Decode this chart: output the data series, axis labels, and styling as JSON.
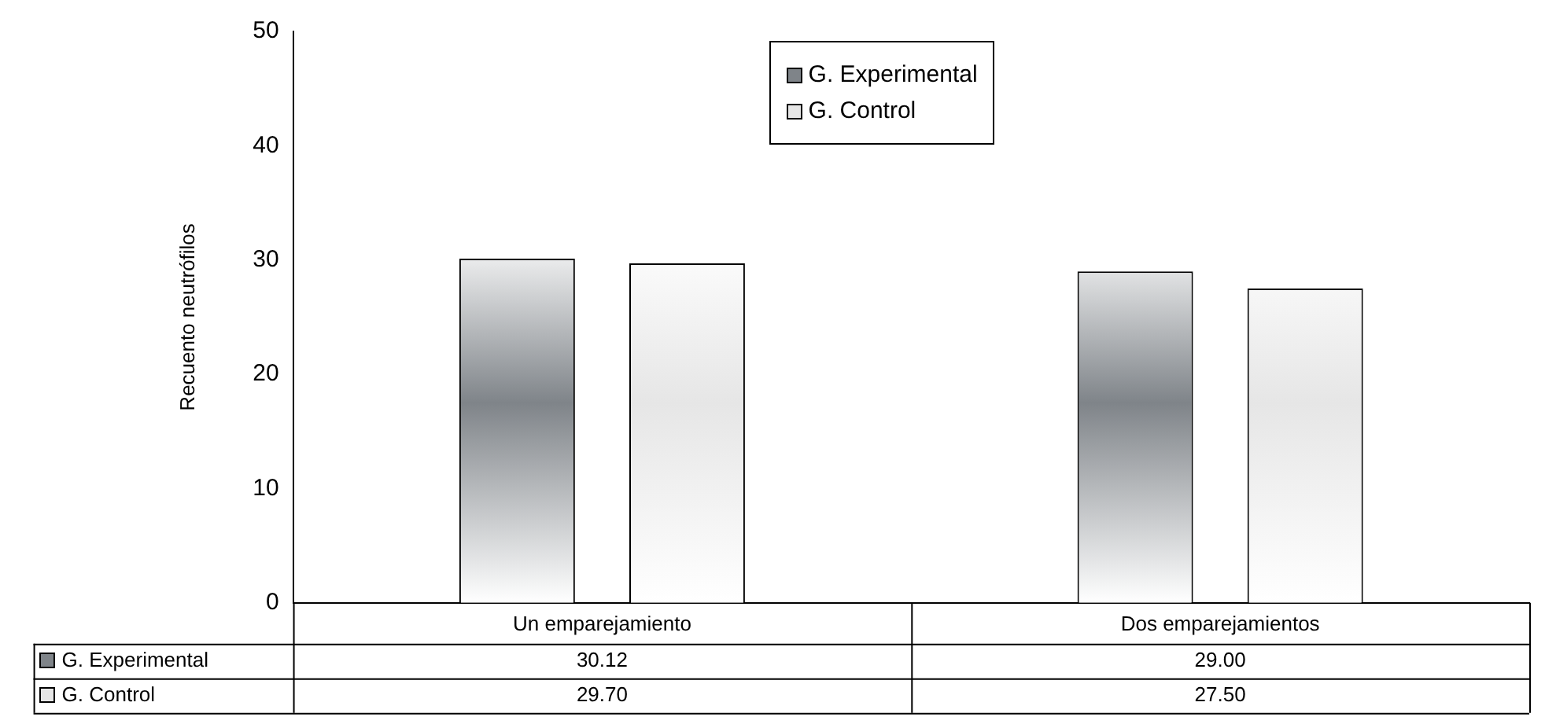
{
  "chart_data": {
    "type": "bar",
    "ylabel": "Recuento neutrófilos",
    "categories": [
      "Un emparejamiento",
      "Dos emparejamientos"
    ],
    "series": [
      {
        "name": "G. Experimental",
        "color": "#7f8489",
        "values": [
          30.12,
          29.0
        ],
        "value_labels": [
          "30.12",
          "29.00"
        ]
      },
      {
        "name": "G. Control",
        "color": "#e6e6e6",
        "values": [
          29.7,
          27.5
        ],
        "value_labels": [
          "29.70",
          "27.50"
        ]
      }
    ],
    "ylim": [
      0,
      50
    ],
    "yticks": [
      0,
      10,
      20,
      30,
      40,
      50
    ],
    "grid": false,
    "legend": "top"
  }
}
